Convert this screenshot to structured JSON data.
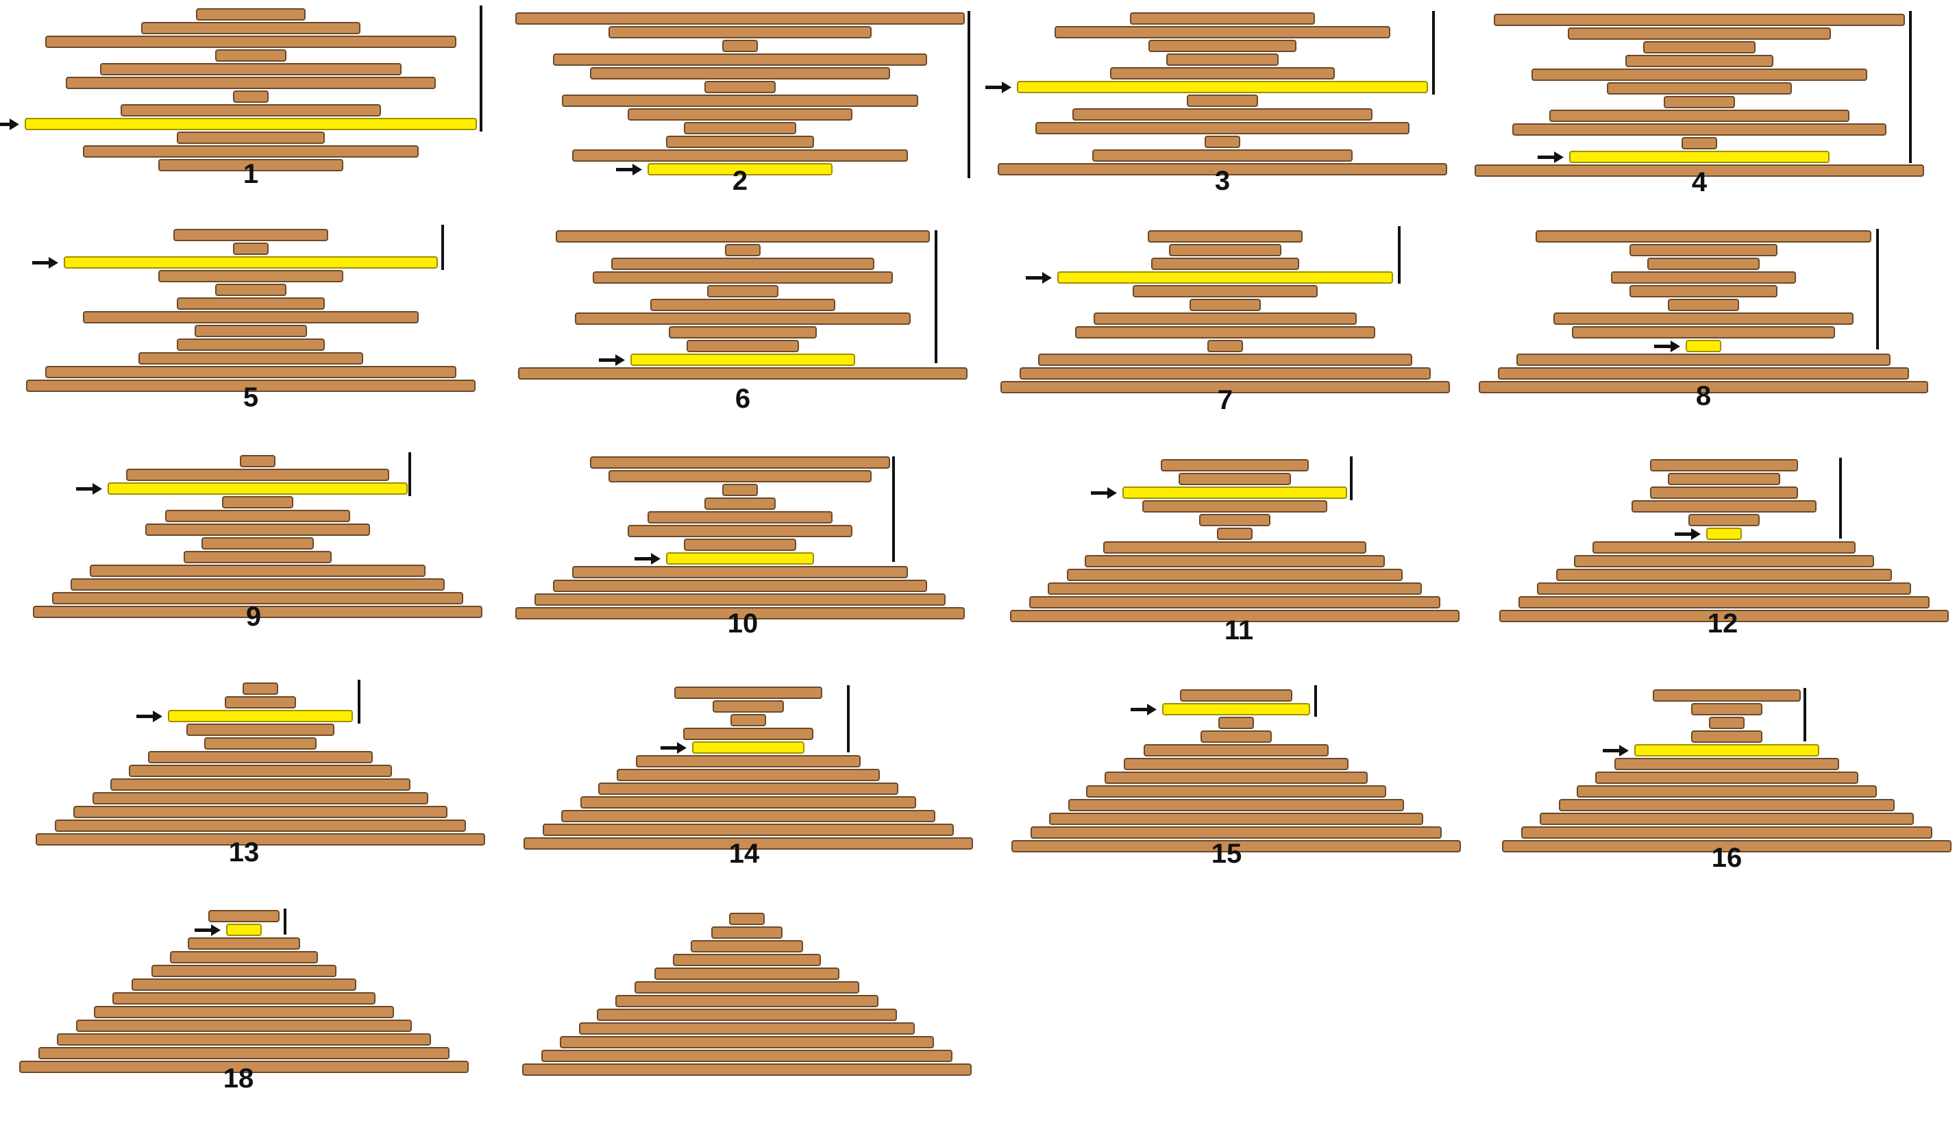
{
  "colors": {
    "plank": "#c98d53",
    "plank_border": "#6b4a2b",
    "highlight": "#ffee00",
    "highlight_border": "#a08f00",
    "marker": "#111111"
  },
  "panel_labels": [
    "1",
    "2",
    "3",
    "4",
    "5",
    "6",
    "7",
    "8",
    "9",
    "10",
    "11",
    "12",
    "13",
    "14",
    "15",
    "16",
    "18",
    ""
  ]
}
